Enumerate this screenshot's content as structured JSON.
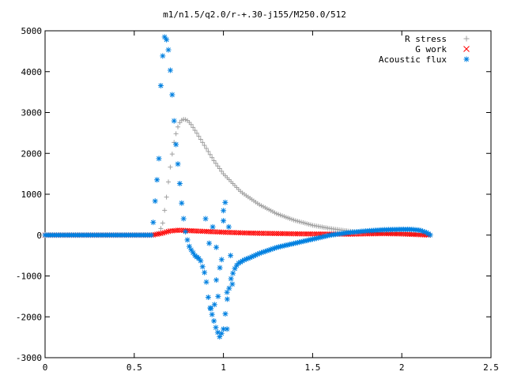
{
  "chart_data": {
    "type": "scatter",
    "title": "m1/n1.5/q2.0/r-+.30-j155/M250.0/512",
    "xlabel": "",
    "ylabel": "",
    "xlim": [
      0,
      2.5
    ],
    "ylim": [
      -3000,
      5000
    ],
    "x_ticks": [
      0,
      0.5,
      1,
      1.5,
      2,
      2.5
    ],
    "x_tick_labels": [
      "0",
      "0.5",
      "1",
      "1.5",
      "2",
      "2.5"
    ],
    "y_ticks": [
      -3000,
      -2000,
      -1000,
      0,
      1000,
      2000,
      3000,
      4000,
      5000
    ],
    "y_tick_labels": [
      "-3000",
      "-2000",
      "-1000",
      "0",
      "1000",
      "2000",
      "3000",
      "4000",
      "5000"
    ],
    "grid": false,
    "legend_position": "top-right",
    "series": [
      {
        "name": "R stress",
        "marker": "plus",
        "color": "#a0a0a0",
        "x": [
          0.0,
          0.1,
          0.2,
          0.3,
          0.4,
          0.5,
          0.6,
          0.64,
          0.66,
          0.68,
          0.7,
          0.72,
          0.74,
          0.76,
          0.78,
          0.8,
          0.82,
          0.85,
          0.9,
          0.95,
          1.0,
          1.1,
          1.2,
          1.3,
          1.4,
          1.5,
          1.6,
          1.7,
          1.8,
          1.9,
          2.0,
          2.1,
          2.16
        ],
        "y": [
          0,
          0,
          0,
          0,
          0,
          0,
          0,
          50,
          300,
          900,
          1600,
          2200,
          2600,
          2800,
          2840,
          2800,
          2700,
          2500,
          2150,
          1800,
          1500,
          1050,
          750,
          520,
          360,
          240,
          160,
          100,
          60,
          35,
          20,
          8,
          0
        ]
      },
      {
        "name": "G work",
        "marker": "x",
        "color": "#ff0000",
        "x": [
          0.0,
          0.2,
          0.4,
          0.6,
          0.65,
          0.7,
          0.75,
          0.8,
          0.9,
          1.0,
          1.1,
          1.2,
          1.3,
          1.4,
          1.5,
          1.6,
          1.7,
          1.8,
          1.9,
          2.0,
          2.05,
          2.1,
          2.15
        ],
        "y": [
          0,
          0,
          0,
          0,
          40,
          100,
          120,
          110,
          90,
          70,
          55,
          45,
          38,
          32,
          28,
          25,
          22,
          30,
          35,
          30,
          20,
          10,
          0
        ]
      },
      {
        "name": "Acoustic flux",
        "marker": "star",
        "color": "#0080e0",
        "x": [
          0.0,
          0.1,
          0.2,
          0.3,
          0.4,
          0.5,
          0.6,
          0.645,
          0.65,
          0.66,
          0.67,
          0.68,
          0.69,
          0.7,
          0.71,
          0.72,
          0.73,
          0.75,
          0.77,
          0.79,
          0.81,
          0.84,
          0.87,
          0.9,
          0.92,
          0.94,
          0.96,
          0.98,
          1.0,
          1.02,
          1.04,
          1.06,
          1.08,
          1.1,
          1.12,
          1.15,
          1.2,
          1.3,
          1.4,
          1.5,
          1.6,
          1.7,
          1.8,
          1.9,
          2.0,
          2.05,
          2.1,
          2.14,
          2.16
        ],
        "y": [
          0,
          0,
          0,
          0,
          0,
          0,
          0,
          2200,
          4050,
          4400,
          4850,
          4800,
          4600,
          4150,
          3600,
          3000,
          2400,
          1500,
          600,
          0,
          -300,
          -500,
          -600,
          -1000,
          -1700,
          -2000,
          -2300,
          -2500,
          -2300,
          -1600,
          -1100,
          -850,
          -700,
          -650,
          -600,
          -550,
          -450,
          -300,
          -200,
          -100,
          0,
          60,
          100,
          130,
          140,
          140,
          120,
          60,
          0
        ]
      }
    ],
    "scatter_cloud": {
      "series": "Acoustic flux",
      "x": [
        0.9,
        0.92,
        0.94,
        0.96,
        0.98,
        1.0,
        1.01,
        1.02,
        1.03,
        1.04,
        1.05,
        0.95,
        0.97,
        0.99,
        1.0,
        1.02,
        0.93,
        0.96
      ],
      "y": [
        400,
        -200,
        200,
        -300,
        -800,
        600,
        800,
        -1400,
        200,
        -500,
        -1200,
        -1700,
        -1500,
        -600,
        350,
        -2300,
        -1800,
        -1100
      ]
    }
  }
}
